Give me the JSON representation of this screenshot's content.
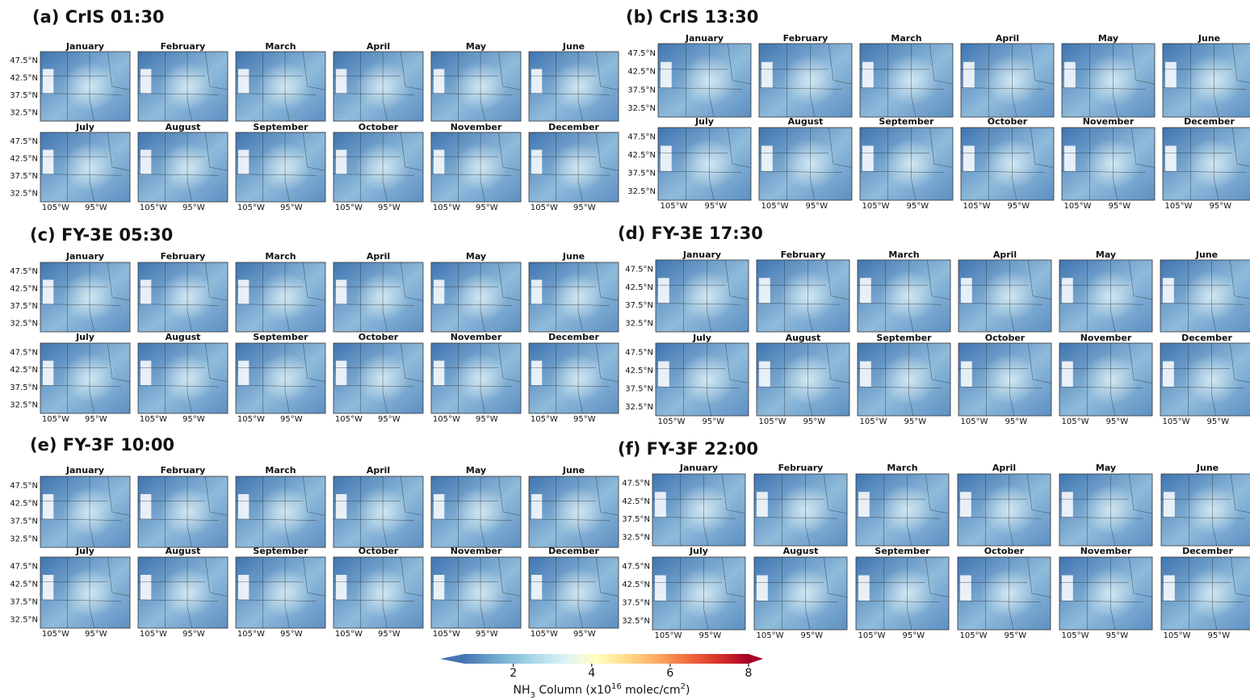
{
  "panels": [
    {
      "title": "(a) CrIS 01:30"
    },
    {
      "title": "(b) CrIS 13:30"
    },
    {
      "title": "(c) FY-3E 05:30"
    },
    {
      "title": "(d) FY-3E 17:30"
    },
    {
      "title": "(e) FY-3F 10:00"
    },
    {
      "title": "(f) FY-3F 22:00"
    }
  ],
  "months": [
    "January",
    "February",
    "March",
    "April",
    "May",
    "June",
    "July",
    "August",
    "September",
    "October",
    "November",
    "December"
  ],
  "lat_labels": [
    "47.5°N",
    "42.5°N",
    "37.5°N",
    "32.5°N"
  ],
  "lon_labels": [
    "105°W",
    "95°W"
  ],
  "colorbar": {
    "lim": [
      0.75,
      8
    ],
    "ticks": [
      2,
      4,
      6,
      8
    ],
    "label_parts": [
      "NH",
      "3",
      " Column (x10",
      "16",
      " molec/cm",
      "2",
      ")"
    ]
  }
}
